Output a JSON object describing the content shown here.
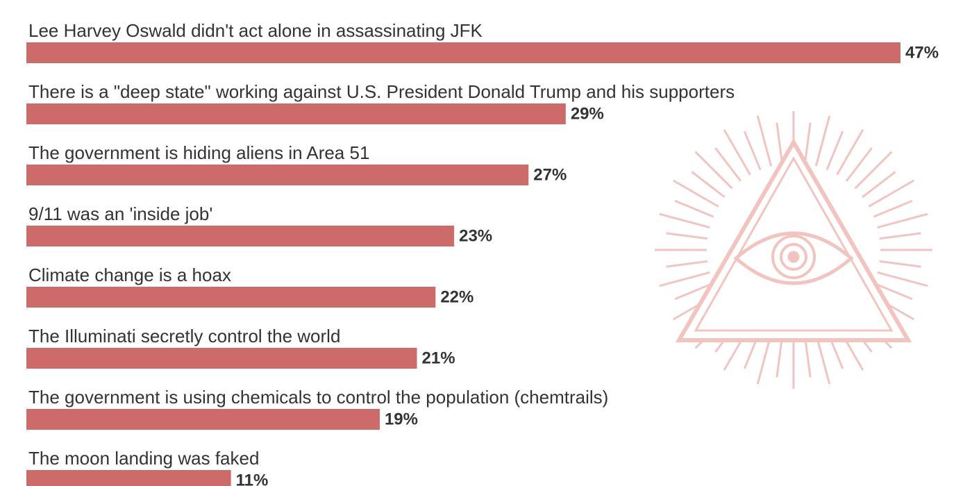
{
  "chart_data": {
    "type": "bar",
    "orientation": "horizontal",
    "categories": [
      "Lee Harvey Oswald didn't act alone in assassinating JFK",
      "There is a \"deep state\" working against U.S. President Donald Trump and his supporters",
      "The government is hiding aliens in Area 51",
      "9/11 was an 'inside job'",
      "Climate change is a hoax",
      "The Illuminati secretly control the world",
      "The government is using chemicals to control the population (chemtrails)",
      "The moon landing was faked"
    ],
    "values": [
      47,
      29,
      27,
      23,
      22,
      21,
      19,
      11
    ],
    "value_labels": [
      "47%",
      "29%",
      "27%",
      "23%",
      "22%",
      "21%",
      "19%",
      "11%"
    ],
    "color": "#cd6a6a"
  }
}
